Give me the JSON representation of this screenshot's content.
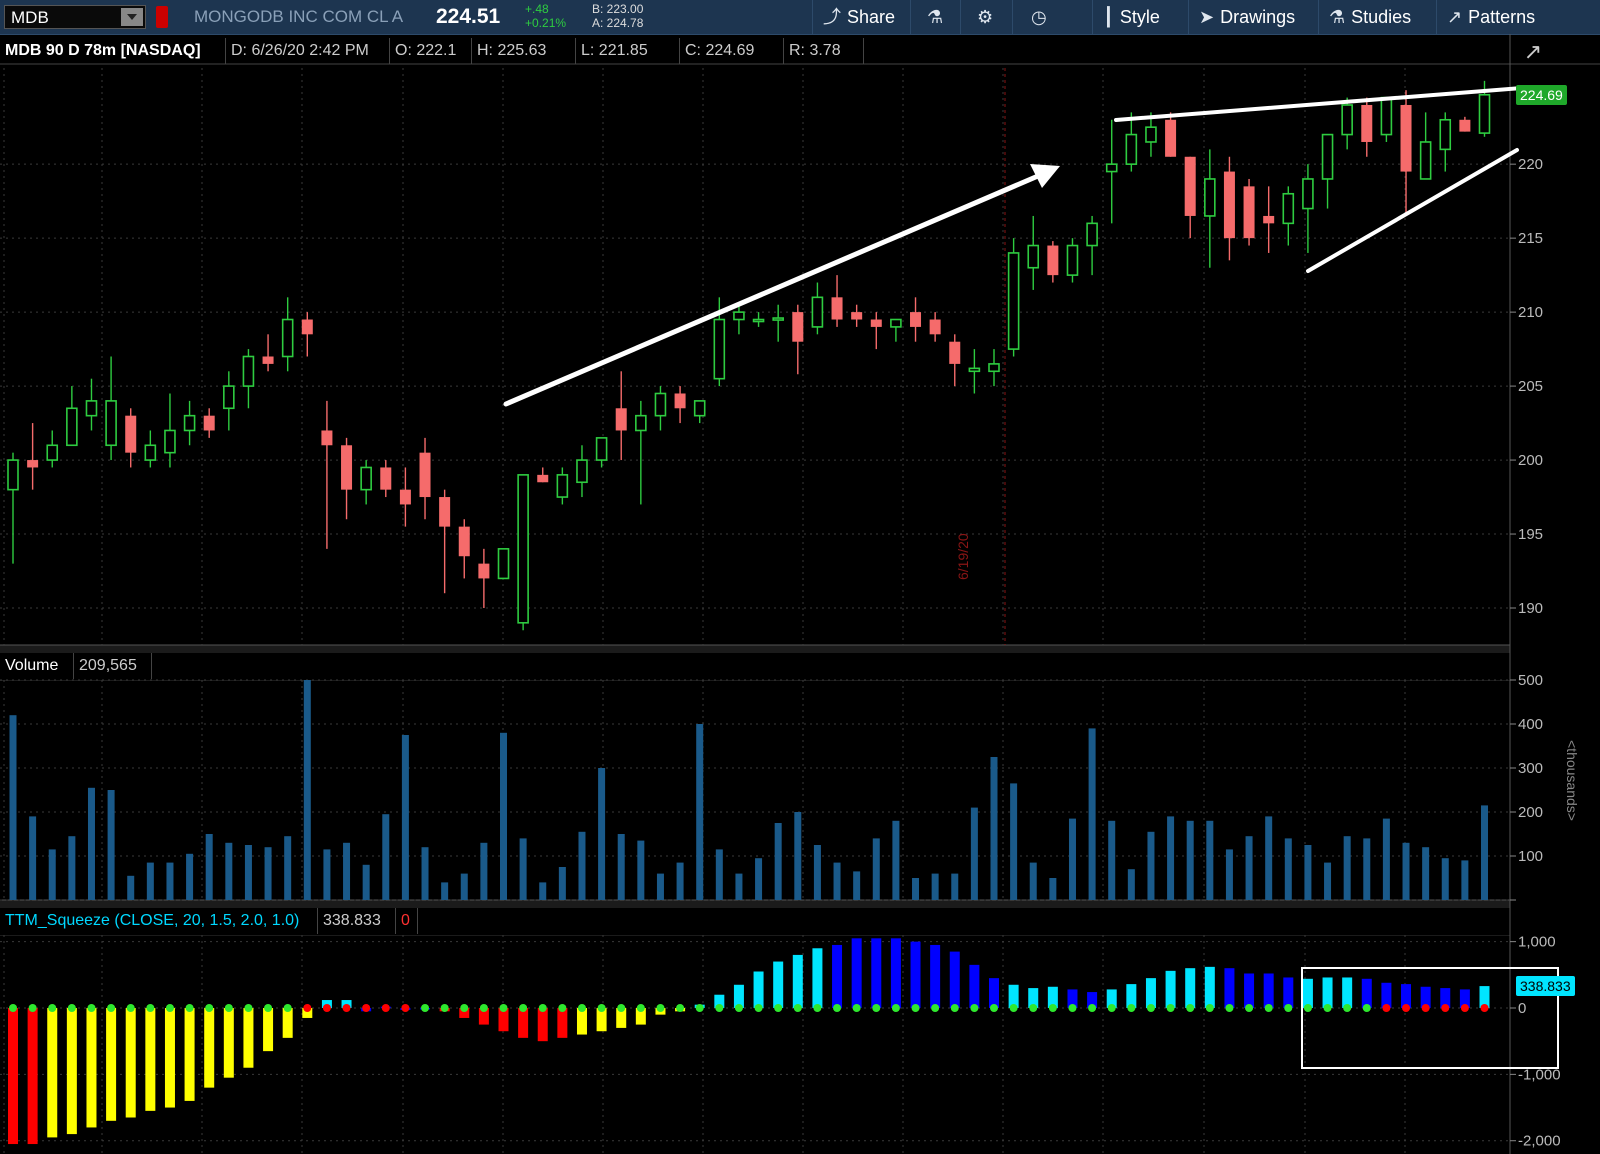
{
  "toolbar": {
    "symbol": "MDB",
    "company": "MONGODB INC COM CL A",
    "last": "224.51",
    "change": "+.48",
    "change_pct": "+0.21%",
    "bid": "B: 223.00",
    "ask": "A: 224.78",
    "buttons": {
      "share": "Share",
      "style": "Style",
      "drawings": "Drawings",
      "studies": "Studies",
      "patterns": "Patterns"
    }
  },
  "price_header": {
    "title": "MDB 90 D 78m [NASDAQ]",
    "date": "D: 6/26/20 2:42 PM",
    "open": "O: 222.1",
    "high": "H: 225.63",
    "low": "L: 221.85",
    "close": "C: 224.69",
    "range": "R: 3.78"
  },
  "volume_header": {
    "label": "Volume",
    "value": "209,565"
  },
  "squeeze_header": {
    "label": "TTM_Squeeze (CLOSE, 20, 1.5, 2.0, 1.0)",
    "value": "338.833",
    "extra": "0"
  },
  "price_label": "224.69",
  "squeeze_label": "338.833",
  "vline_label": "6/19/20",
  "volume_unit": "<thousands>",
  "colors": {
    "up": "#2ecc40",
    "down": "#f56b6b",
    "cyan": "#00e5ff",
    "blue": "#0000ff",
    "yellow": "#ffff00",
    "red": "#ff0000",
    "volume": "#1a5a8a"
  },
  "chart_data": [
    {
      "type": "candlestick",
      "title": "MDB 90 D 78m [NASDAQ]",
      "yticks": [
        190,
        195,
        200,
        205,
        210,
        215,
        220
      ],
      "ylim": [
        187.5,
        226.5
      ],
      "last_value": 224.69,
      "candles": [
        {
          "o": 198,
          "h": 200.5,
          "l": 193,
          "c": 200
        },
        {
          "o": 200,
          "h": 202.5,
          "l": 198,
          "c": 199.5
        },
        {
          "o": 200,
          "h": 202,
          "l": 199.5,
          "c": 201
        },
        {
          "o": 201,
          "h": 205,
          "l": 201,
          "c": 203.5
        },
        {
          "o": 203,
          "h": 205.5,
          "l": 202,
          "c": 204
        },
        {
          "o": 201,
          "h": 207,
          "l": 200,
          "c": 204
        },
        {
          "o": 203,
          "h": 203.5,
          "l": 199.5,
          "c": 200.5
        },
        {
          "o": 200,
          "h": 202,
          "l": 199.5,
          "c": 201
        },
        {
          "o": 200.5,
          "h": 204.5,
          "l": 199.5,
          "c": 202
        },
        {
          "o": 202,
          "h": 204,
          "l": 201,
          "c": 203
        },
        {
          "o": 203,
          "h": 203.5,
          "l": 201.5,
          "c": 202
        },
        {
          "o": 203.5,
          "h": 206,
          "l": 202,
          "c": 205
        },
        {
          "o": 205,
          "h": 207.5,
          "l": 203.5,
          "c": 207
        },
        {
          "o": 207,
          "h": 208.5,
          "l": 206,
          "c": 206.5
        },
        {
          "o": 207,
          "h": 211,
          "l": 206,
          "c": 209.5
        },
        {
          "o": 209.5,
          "h": 210,
          "l": 207,
          "c": 208.5
        },
        {
          "o": 202,
          "h": 204,
          "l": 194,
          "c": 201
        },
        {
          "o": 201,
          "h": 201.5,
          "l": 196,
          "c": 198
        },
        {
          "o": 198,
          "h": 200,
          "l": 197,
          "c": 199.5
        },
        {
          "o": 199.5,
          "h": 200,
          "l": 197.5,
          "c": 198
        },
        {
          "o": 198,
          "h": 199.5,
          "l": 195.5,
          "c": 197
        },
        {
          "o": 200.5,
          "h": 201.5,
          "l": 196,
          "c": 197.5
        },
        {
          "o": 197.5,
          "h": 198,
          "l": 191,
          "c": 195.5
        },
        {
          "o": 195.5,
          "h": 196,
          "l": 192,
          "c": 193.5
        },
        {
          "o": 193,
          "h": 194,
          "l": 190,
          "c": 192
        },
        {
          "o": 192,
          "h": 194,
          "l": 192,
          "c": 194
        },
        {
          "o": 189,
          "h": 199,
          "l": 188.5,
          "c": 199
        },
        {
          "o": 199,
          "h": 199.5,
          "l": 198.5,
          "c": 198.5
        },
        {
          "o": 197.5,
          "h": 199.5,
          "l": 197,
          "c": 199
        },
        {
          "o": 198.5,
          "h": 201,
          "l": 197.5,
          "c": 200
        },
        {
          "o": 200,
          "h": 201.5,
          "l": 199.5,
          "c": 201.5
        },
        {
          "o": 203.5,
          "h": 206,
          "l": 200,
          "c": 202
        },
        {
          "o": 202,
          "h": 204,
          "l": 197,
          "c": 203
        },
        {
          "o": 203,
          "h": 205,
          "l": 202,
          "c": 204.5
        },
        {
          "o": 204.5,
          "h": 205,
          "l": 202.5,
          "c": 203.5
        },
        {
          "o": 203,
          "h": 204,
          "l": 202.5,
          "c": 204
        },
        {
          "o": 205.5,
          "h": 211,
          "l": 205,
          "c": 209.5
        },
        {
          "o": 209.5,
          "h": 210.5,
          "l": 208.5,
          "c": 210
        },
        {
          "o": 209.5,
          "h": 210,
          "l": 209,
          "c": 209.5
        },
        {
          "o": 209.5,
          "h": 210.5,
          "l": 208,
          "c": 209.6
        },
        {
          "o": 210,
          "h": 210.5,
          "l": 205.8,
          "c": 208
        },
        {
          "o": 209,
          "h": 212,
          "l": 208.5,
          "c": 211
        },
        {
          "o": 211,
          "h": 212.5,
          "l": 209,
          "c": 209.5
        },
        {
          "o": 210,
          "h": 210.5,
          "l": 209,
          "c": 209.5
        },
        {
          "o": 209.5,
          "h": 210,
          "l": 207.5,
          "c": 209
        },
        {
          "o": 209,
          "h": 209.5,
          "l": 208,
          "c": 209.5
        },
        {
          "o": 210,
          "h": 211,
          "l": 208,
          "c": 209
        },
        {
          "o": 209.5,
          "h": 210,
          "l": 208,
          "c": 208.5
        },
        {
          "o": 208,
          "h": 208.5,
          "l": 205,
          "c": 206.5
        },
        {
          "o": 206,
          "h": 207.5,
          "l": 204.5,
          "c": 206.2
        },
        {
          "o": 206,
          "h": 207.5,
          "l": 205,
          "c": 206.5
        },
        {
          "o": 207.5,
          "h": 215,
          "l": 207,
          "c": 214
        },
        {
          "o": 213,
          "h": 216.5,
          "l": 211.5,
          "c": 214.5
        },
        {
          "o": 214.5,
          "h": 214.8,
          "l": 212,
          "c": 212.5
        },
        {
          "o": 212.5,
          "h": 215,
          "l": 212,
          "c": 214.5
        },
        {
          "o": 214.5,
          "h": 216.5,
          "l": 212.5,
          "c": 216
        },
        {
          "o": 219.5,
          "h": 223,
          "l": 216,
          "c": 220
        },
        {
          "o": 220,
          "h": 223.5,
          "l": 219.5,
          "c": 222
        },
        {
          "o": 221.5,
          "h": 223.5,
          "l": 220.5,
          "c": 222.5
        },
        {
          "o": 223,
          "h": 223.5,
          "l": 220.5,
          "c": 220.5
        },
        {
          "o": 220.5,
          "h": 220.5,
          "l": 215,
          "c": 216.5
        },
        {
          "o": 216.5,
          "h": 221,
          "l": 213,
          "c": 219
        },
        {
          "o": 219.5,
          "h": 220.5,
          "l": 213.5,
          "c": 215
        },
        {
          "o": 218.5,
          "h": 219,
          "l": 214.5,
          "c": 215
        },
        {
          "o": 216.5,
          "h": 218.5,
          "l": 214,
          "c": 216
        },
        {
          "o": 216,
          "h": 218.5,
          "l": 214.5,
          "c": 218
        },
        {
          "o": 217,
          "h": 220,
          "l": 214,
          "c": 219
        },
        {
          "o": 219,
          "h": 222,
          "l": 217,
          "c": 222
        },
        {
          "o": 222,
          "h": 224.5,
          "l": 221,
          "c": 224
        },
        {
          "o": 224,
          "h": 224.5,
          "l": 220.5,
          "c": 221.5
        },
        {
          "o": 222,
          "h": 224.5,
          "l": 221.5,
          "c": 224.5
        },
        {
          "o": 224,
          "h": 225,
          "l": 216.5,
          "c": 219.5
        },
        {
          "o": 219,
          "h": 223.5,
          "l": 219,
          "c": 221.5
        },
        {
          "o": 221,
          "h": 223.5,
          "l": 219.5,
          "c": 223
        },
        {
          "o": 223,
          "h": 223.2,
          "l": 222.2,
          "c": 222.2
        },
        {
          "o": 222.1,
          "h": 225.63,
          "l": 221.85,
          "c": 224.69
        }
      ]
    },
    {
      "type": "bar",
      "title": "Volume",
      "yticks": [
        0,
        100,
        200,
        300,
        400,
        500
      ],
      "ylim": [
        0,
        500
      ],
      "unit": "<thousands>",
      "values": [
        420,
        190,
        115,
        145,
        255,
        250,
        55,
        85,
        85,
        105,
        150,
        130,
        125,
        120,
        145,
        500,
        115,
        130,
        80,
        195,
        375,
        120,
        40,
        60,
        130,
        380,
        140,
        40,
        75,
        155,
        300,
        150,
        135,
        60,
        85,
        400,
        115,
        60,
        95,
        175,
        200,
        125,
        85,
        65,
        140,
        180,
        50,
        60,
        60,
        210,
        325,
        265,
        85,
        50,
        185,
        390,
        180,
        70,
        155,
        190,
        180,
        180,
        115,
        145,
        190,
        140,
        125,
        85,
        145,
        140,
        185,
        130,
        120,
        95,
        90,
        215
      ]
    },
    {
      "type": "bar",
      "title": "TTM_Squeeze (CLOSE, 20, 1.5, 2.0, 1.0)",
      "yticks": [
        -2000,
        -1000,
        0,
        1000
      ],
      "ylim": [
        -2200,
        1100
      ],
      "last_value": 338.833,
      "values": [
        -2050,
        -2050,
        -1950,
        -1900,
        -1800,
        -1700,
        -1650,
        -1550,
        -1500,
        -1400,
        -1200,
        -1050,
        -900,
        -650,
        -450,
        -150,
        120,
        120,
        -50,
        20,
        -30,
        0,
        -50,
        -150,
        -250,
        -350,
        -450,
        -500,
        -450,
        -400,
        -350,
        -300,
        -250,
        -100,
        -50,
        50,
        200,
        350,
        550,
        700,
        800,
        900,
        950,
        1050,
        1050,
        1050,
        1000,
        950,
        850,
        650,
        450,
        350,
        300,
        320,
        280,
        240,
        280,
        360,
        450,
        560,
        600,
        620,
        600,
        520,
        520,
        460,
        440,
        460,
        460,
        440,
        380,
        360,
        320,
        300,
        280,
        330
      ],
      "colors": [
        "red",
        "red",
        "yellow",
        "yellow",
        "yellow",
        "yellow",
        "yellow",
        "yellow",
        "yellow",
        "yellow",
        "yellow",
        "yellow",
        "yellow",
        "yellow",
        "yellow",
        "yellow",
        "cyan",
        "cyan",
        "blue",
        "blue",
        "blue",
        "blue",
        "red",
        "red",
        "red",
        "red",
        "red",
        "red",
        "red",
        "yellow",
        "yellow",
        "yellow",
        "yellow",
        "yellow",
        "yellow",
        "cyan",
        "cyan",
        "cyan",
        "cyan",
        "cyan",
        "cyan",
        "cyan",
        "blue",
        "blue",
        "blue",
        "blue",
        "blue",
        "blue",
        "blue",
        "blue",
        "blue",
        "cyan",
        "cyan",
        "cyan",
        "blue",
        "blue",
        "cyan",
        "cyan",
        "cyan",
        "cyan",
        "cyan",
        "cyan",
        "blue",
        "blue",
        "blue",
        "blue",
        "cyan",
        "cyan",
        "cyan",
        "blue",
        "blue",
        "blue",
        "blue",
        "blue",
        "blue",
        "cyan"
      ],
      "dots": [
        "green",
        "green",
        "green",
        "green",
        "green",
        "green",
        "green",
        "green",
        "green",
        "green",
        "green",
        "green",
        "green",
        "green",
        "green",
        "red",
        "red",
        "red",
        "red",
        "red",
        "red",
        "green",
        "green",
        "green",
        "green",
        "green",
        "green",
        "green",
        "green",
        "green",
        "green",
        "green",
        "green",
        "green",
        "green",
        "green",
        "green",
        "green",
        "green",
        "green",
        "green",
        "green",
        "green",
        "green",
        "green",
        "green",
        "green",
        "green",
        "green",
        "green",
        "green",
        "green",
        "green",
        "green",
        "green",
        "green",
        "green",
        "green",
        "green",
        "green",
        "green",
        "green",
        "green",
        "green",
        "green",
        "green",
        "green",
        "green",
        "green",
        "green",
        "red",
        "red",
        "red",
        "red",
        "red",
        "red"
      ]
    }
  ]
}
